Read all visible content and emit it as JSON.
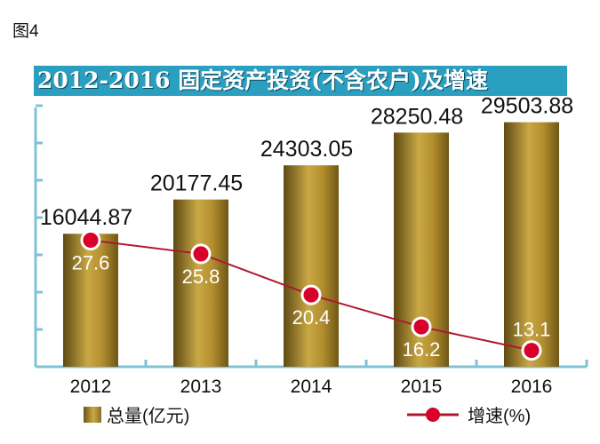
{
  "figure_label": "图4",
  "chart_data": {
    "type": "bar",
    "title": "2012-2016 固定资产投资(不含农户)及增速",
    "categories": [
      "2012",
      "2013",
      "2014",
      "2015",
      "2016"
    ],
    "series": [
      {
        "name": "总量(亿元)",
        "type": "bar",
        "values": [
          16044.87,
          20177.45,
          24303.05,
          28250.48,
          29503.88
        ],
        "labels": [
          "16044.87",
          "20177.45",
          "24303.05",
          "28250.48",
          "29503.88"
        ]
      },
      {
        "name": "增速(%)",
        "type": "line",
        "values": [
          27.6,
          25.8,
          20.4,
          16.2,
          13.1
        ],
        "labels": [
          "27.6",
          "25.8",
          "20.4",
          "16.2",
          "13.1"
        ]
      }
    ],
    "ylim": [
      0,
      30000
    ],
    "ylim_secondary": [
      12,
      30
    ],
    "legend_position": "bottom",
    "colors": {
      "bar": "#b89535",
      "line": "#b0182f",
      "marker": "#d8002a",
      "axis": "#7ec3d6",
      "title_bg": "#2a9fc0"
    }
  }
}
